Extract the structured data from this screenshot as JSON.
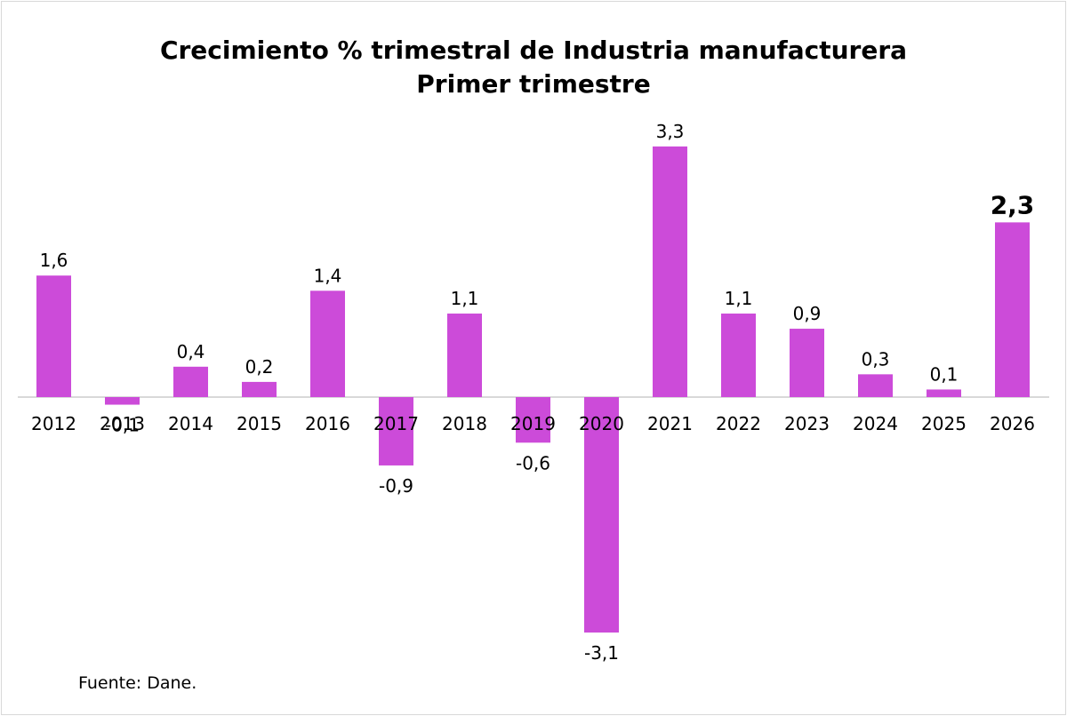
{
  "chart_data": {
    "type": "bar",
    "title": "Crecimiento % trimestral de Industria manufacturera",
    "subtitle": "Primer trimestre",
    "categories": [
      "2012",
      "2013",
      "2014",
      "2015",
      "2016",
      "2017",
      "2018",
      "2019",
      "2020",
      "2021",
      "2022",
      "2023",
      "2024",
      "2025",
      "2026"
    ],
    "values": [
      1.6,
      -0.1,
      0.4,
      0.2,
      1.4,
      -0.9,
      1.1,
      -0.6,
      -3.1,
      3.3,
      1.1,
      0.9,
      0.3,
      0.1,
      2.3
    ],
    "labels": [
      "1,6",
      "-0,1",
      "0,4",
      "0,2",
      "1,4",
      "-0,9",
      "1,1",
      "-0,6",
      "-3,1",
      "3,3",
      "1,1",
      "0,9",
      "0,3",
      "0,1",
      "2,3"
    ],
    "highlight_category": "2026",
    "bar_color": "#cc4bd9",
    "axis_color": "#d9d9d9",
    "xlabel": "",
    "ylabel": "",
    "ylim": [
      -3.5,
      3.5
    ],
    "grid": false,
    "legend": "none",
    "source": "Fuente: Dane."
  }
}
